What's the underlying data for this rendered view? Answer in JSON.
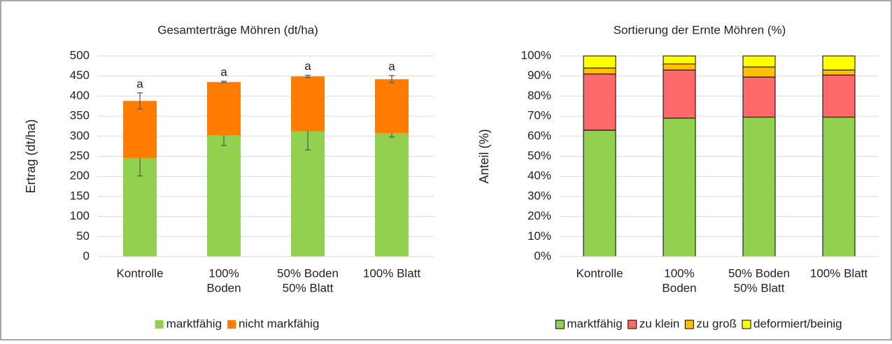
{
  "chart_data": [
    {
      "type": "bar",
      "stacked": true,
      "title": "Gesamterträge Möhren (dt/ha)",
      "ylabel": "Ertrag (dt/ha)",
      "categories": [
        [
          "Kontrolle"
        ],
        [
          "100%",
          "Boden"
        ],
        [
          "50% Boden",
          "50% Blatt"
        ],
        [
          "100% Blatt"
        ]
      ],
      "series": [
        {
          "name": "marktfähig",
          "color": "#92d050",
          "values": [
            245,
            302,
            312,
            307
          ],
          "errors": [
            44,
            25,
            46,
            9
          ]
        },
        {
          "name": "nicht markfähig",
          "color": "#ff7c00",
          "values": [
            143,
            133,
            137,
            135
          ],
          "errors": [
            20,
            2,
            3,
            9
          ]
        }
      ],
      "annotations": [
        "a",
        "a",
        "a",
        "a"
      ],
      "ylim": [
        0,
        500
      ],
      "yticks": [
        0,
        50,
        100,
        150,
        200,
        250,
        300,
        350,
        400,
        450,
        500
      ],
      "grid": true
    },
    {
      "type": "bar",
      "stacked": true,
      "title": "Sortierung der Ernte Möhren (%)",
      "ylabel": "Anteil (%)",
      "categories": [
        [
          "Kontrolle"
        ],
        [
          "100%",
          "Boden"
        ],
        [
          "50% Boden",
          "50% Blatt"
        ],
        [
          "100% Blatt"
        ]
      ],
      "series": [
        {
          "name": "marktfähig",
          "color": "#92d050",
          "values": [
            63,
            69,
            69.5,
            69.5
          ]
        },
        {
          "name": "zu klein",
          "color": "#ff6969",
          "values": [
            28,
            24,
            20,
            21
          ]
        },
        {
          "name": "zu groß",
          "color": "#ffc000",
          "values": [
            3,
            3,
            5,
            2.5
          ]
        },
        {
          "name": "deformiert/beinig",
          "color": "#ffff00",
          "values": [
            6,
            4,
            5.5,
            7
          ]
        }
      ],
      "ylim": [
        0,
        100
      ],
      "yticks": [
        {
          "value": 0,
          "label": "0%"
        },
        {
          "value": 10,
          "label": "10%"
        },
        {
          "value": 20,
          "label": "20%"
        },
        {
          "value": 30,
          "label": "30%"
        },
        {
          "value": 40,
          "label": "40%"
        },
        {
          "value": 50,
          "label": "50%"
        },
        {
          "value": 60,
          "label": "60%"
        },
        {
          "value": 70,
          "label": "70%"
        },
        {
          "value": 80,
          "label": "80%"
        },
        {
          "value": 90,
          "label": "90%"
        },
        {
          "value": 100,
          "label": "100%"
        }
      ],
      "grid": true
    }
  ]
}
